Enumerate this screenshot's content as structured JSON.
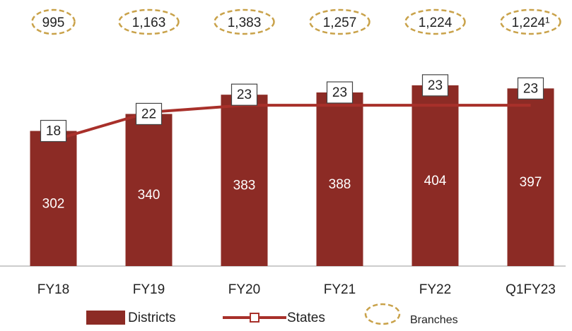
{
  "chart_data": {
    "type": "bar",
    "categories": [
      "FY18",
      "FY19",
      "FY20",
      "FY21",
      "FY22",
      "Q1FY23"
    ],
    "ylim": [
      0,
      500
    ],
    "y2lim": [
      0,
      32
    ],
    "series": [
      {
        "name": "Districts",
        "type": "bar",
        "color": "#8c2b25",
        "values": [
          302,
          340,
          383,
          388,
          404,
          397
        ]
      },
      {
        "name": "States",
        "type": "line",
        "axis": "y2",
        "color": "#a8302a",
        "values": [
          18,
          22,
          23,
          23,
          23,
          23
        ]
      },
      {
        "name": "Branches",
        "type": "oval",
        "color": "#c9a24a",
        "values": [
          995,
          1163,
          1383,
          1257,
          1224,
          1224
        ],
        "value_labels": [
          "995",
          "1,163",
          "1,383",
          "1,257",
          "1,224",
          "1,224¹"
        ]
      }
    ]
  }
}
